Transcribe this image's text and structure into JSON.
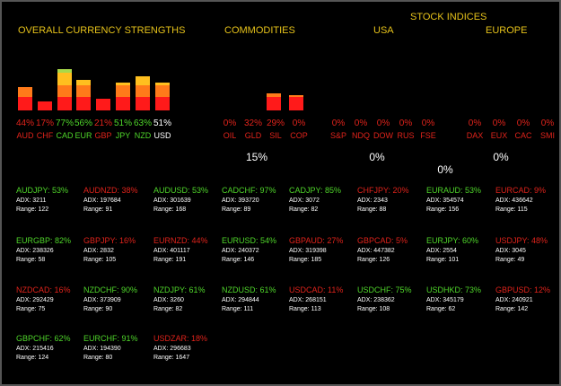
{
  "headers": {
    "overall": "OVERALL CURRENCY STRENGTHS",
    "commodities": "COMMODITIES",
    "stock_indices": "STOCK INDICES",
    "usa": "USA",
    "europe": "EUROPE"
  },
  "colors": {
    "green": "#4fd62a",
    "red": "#e0231b",
    "white": "#ffffff",
    "header": "#e6c21a"
  },
  "currencies": [
    {
      "pct": "44%",
      "name": "AUD",
      "value": 44,
      "color": "red"
    },
    {
      "pct": "17%",
      "name": "CHF",
      "value": 17,
      "color": "red"
    },
    {
      "pct": "77%",
      "name": "CAD",
      "value": 77,
      "color": "green"
    },
    {
      "pct": "56%",
      "name": "EUR",
      "value": 56,
      "color": "green"
    },
    {
      "pct": "21%",
      "name": "GBP",
      "value": 21,
      "color": "red"
    },
    {
      "pct": "51%",
      "name": "JPY",
      "value": 51,
      "color": "green"
    },
    {
      "pct": "63%",
      "name": "NZD",
      "value": 63,
      "color": "green"
    },
    {
      "pct": "51%",
      "name": "USD",
      "value": 51,
      "color": "white"
    }
  ],
  "commodities": [
    {
      "pct": "0%",
      "name": "OIL",
      "value": 0
    },
    {
      "pct": "32%",
      "name": "GLD",
      "value": 32
    },
    {
      "pct": "29%",
      "name": "SIL",
      "value": 29
    },
    {
      "pct": "0%",
      "name": "COP",
      "value": 0
    }
  ],
  "commodities_avg": "15%",
  "usa": [
    {
      "pct": "0%",
      "name": "S&P"
    },
    {
      "pct": "0%",
      "name": "NDQ"
    },
    {
      "pct": "0%",
      "name": "DOW"
    },
    {
      "pct": "0%",
      "name": "RUS"
    },
    {
      "pct": "0%",
      "name": "FSE"
    }
  ],
  "usa_avg": "0%",
  "europe": [
    {
      "pct": "0%",
      "name": "DAX"
    },
    {
      "pct": "0%",
      "name": "EUX"
    },
    {
      "pct": "0%",
      "name": "CAC"
    },
    {
      "pct": "0%",
      "name": "SMI"
    }
  ],
  "europe_avg": "0%",
  "stock_avg": "0%",
  "pairs": [
    [
      {
        "name": "AUDJPY: 53%",
        "adx": "ADX: 3211",
        "range": "Range: 122",
        "color": "green"
      },
      {
        "name": "AUDNZD: 38%",
        "adx": "ADX: 197684",
        "range": "Range: 91",
        "color": "red"
      },
      {
        "name": "AUDUSD: 53%",
        "adx": "ADX: 301639",
        "range": "Range: 168",
        "color": "green"
      },
      {
        "name": "CADCHF: 97%",
        "adx": "ADX: 393720",
        "range": "Range: 89",
        "color": "green"
      },
      {
        "name": "CADJPY: 85%",
        "adx": "ADX: 3072",
        "range": "Range: 82",
        "color": "green"
      },
      {
        "name": "CHFJPY: 20%",
        "adx": "ADX: 2343",
        "range": "Range: 88",
        "color": "red"
      },
      {
        "name": "EURAUD: 53%",
        "adx": "ADX: 354574",
        "range": "Range: 156",
        "color": "green"
      },
      {
        "name": "EURCAD: 9%",
        "adx": "ADX: 436642",
        "range": "Range: 115",
        "color": "red"
      }
    ],
    [
      {
        "name": "EURGBP: 82%",
        "adx": "ADX: 238326",
        "range": "Range: 58",
        "color": "green"
      },
      {
        "name": "GBPJPY: 16%",
        "adx": "ADX: 2832",
        "range": "Range: 105",
        "color": "red"
      },
      {
        "name": "EURNZD: 44%",
        "adx": "ADX: 401117",
        "range": "Range: 191",
        "color": "red"
      },
      {
        "name": "EURUSD: 54%",
        "adx": "ADX: 240372",
        "range": "Range: 146",
        "color": "green"
      },
      {
        "name": "GBPAUD: 27%",
        "adx": "ADX: 319398",
        "range": "Range: 185",
        "color": "red"
      },
      {
        "name": "GBPCAD: 5%",
        "adx": "ADX: 447382",
        "range": "Range: 126",
        "color": "red"
      },
      {
        "name": "EURJPY: 60%",
        "adx": "ADX: 2554",
        "range": "Range: 101",
        "color": "green"
      },
      {
        "name": "USDJPY: 48%",
        "adx": "ADX: 3045",
        "range": "Range: 49",
        "color": "red"
      }
    ],
    [
      {
        "name": "NZDCAD: 16%",
        "adx": "ADX: 292429",
        "range": "Range: 75",
        "color": "red"
      },
      {
        "name": "NZDCHF: 90%",
        "adx": "ADX: 373909",
        "range": "Range: 90",
        "color": "green"
      },
      {
        "name": "NZDJPY: 61%",
        "adx": "ADX: 3260",
        "range": "Range: 82",
        "color": "green"
      },
      {
        "name": "NZDUSD: 61%",
        "adx": "ADX: 294844",
        "range": "Range: 111",
        "color": "green"
      },
      {
        "name": "USDCAD: 11%",
        "adx": "ADX: 268151",
        "range": "Range: 113",
        "color": "red"
      },
      {
        "name": "USDCHF: 75%",
        "adx": "ADX: 238362",
        "range": "Range: 108",
        "color": "green"
      },
      {
        "name": "USDHKD: 73%",
        "adx": "ADX: 345179",
        "range": "Range: 62",
        "color": "green"
      },
      {
        "name": "GBPUSD: 12%",
        "adx": "ADX: 240921",
        "range": "Range: 142",
        "color": "red"
      }
    ],
    [
      {
        "name": "GBPCHF: 62%",
        "adx": "ADX: 215416",
        "range": "Range: 124",
        "color": "green"
      },
      {
        "name": "EURCHF: 91%",
        "adx": "ADX: 194390",
        "range": "Range: 80",
        "color": "green"
      },
      {
        "name": "USDZAR: 18%",
        "adx": "ADX: 296683",
        "range": "Range: 1647",
        "color": "red"
      }
    ]
  ]
}
